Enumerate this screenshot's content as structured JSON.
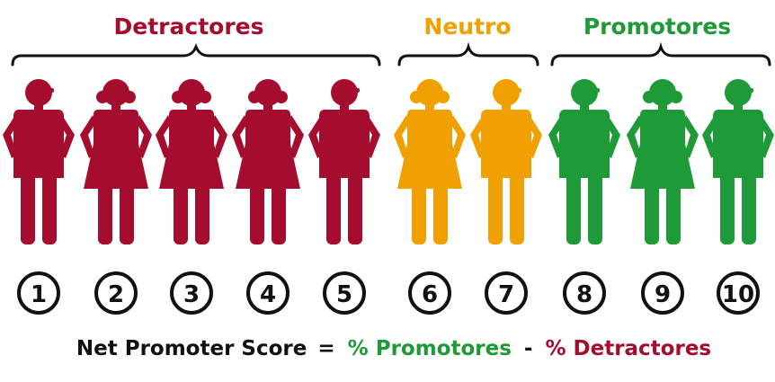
{
  "groups": [
    {
      "label": "Detractores",
      "color": "#a50d2e"
    },
    {
      "label": "Neutro",
      "color": "#f0a000"
    },
    {
      "label": "Promotores",
      "color": "#1f9a38"
    }
  ],
  "people": [
    {
      "score": "1",
      "gender": "male",
      "group": 0
    },
    {
      "score": "2",
      "gender": "female",
      "group": 0
    },
    {
      "score": "3",
      "gender": "female",
      "group": 0
    },
    {
      "score": "4",
      "gender": "female",
      "group": 0
    },
    {
      "score": "5",
      "gender": "male",
      "group": 0
    },
    {
      "score": "6",
      "gender": "female",
      "group": 1
    },
    {
      "score": "7",
      "gender": "male",
      "group": 1
    },
    {
      "score": "8",
      "gender": "male",
      "group": 2
    },
    {
      "score": "9",
      "gender": "female",
      "group": 2
    },
    {
      "score": "10",
      "gender": "male",
      "group": 2
    }
  ],
  "formula": {
    "lhs": "Net Promoter Score",
    "equals": "=",
    "promoters": "% Promotores",
    "minus": "-",
    "detractors": "% Detractores",
    "text_color": "#111111"
  }
}
